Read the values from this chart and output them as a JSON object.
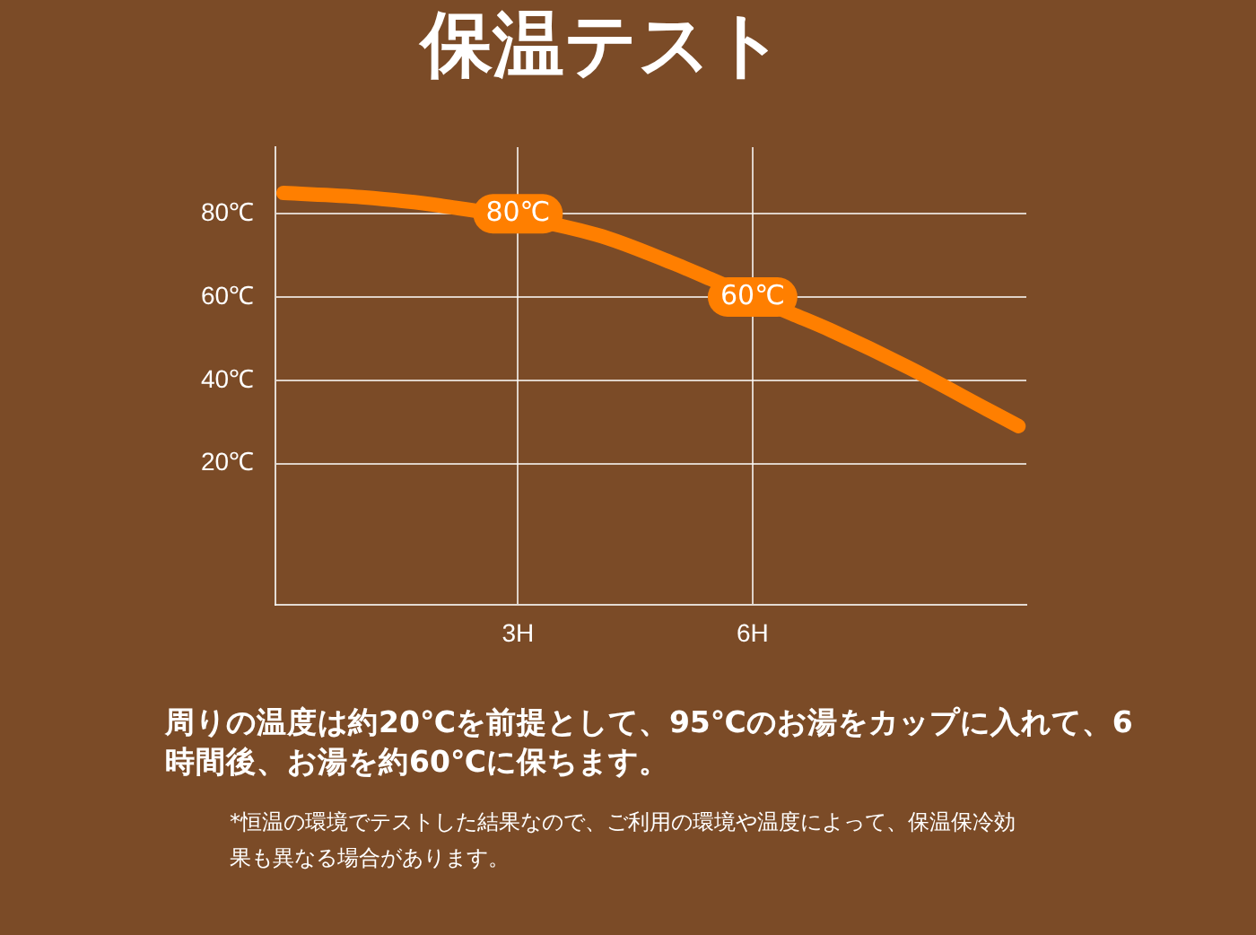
{
  "chart_data": {
    "type": "line",
    "title": "保温テスト",
    "x": [
      0,
      1,
      2,
      4,
      5,
      5.5,
      6.5,
      7,
      8,
      9,
      9.4
    ],
    "series": [
      {
        "color": "#ff7f00",
        "values": [
          85,
          84,
          82,
          75,
          68,
          64,
          56,
          52,
          43,
          33,
          29
        ]
      }
    ],
    "xlim": [
      -0.1,
      9.5
    ],
    "xticks": [
      {
        "value": 3,
        "label": "3H"
      },
      {
        "value": 6,
        "label": "6H"
      }
    ],
    "ylim": [
      -14,
      96
    ],
    "yticks": [
      {
        "value": 20,
        "label": "20℃"
      },
      {
        "value": 40,
        "label": "40℃"
      },
      {
        "value": 60,
        "label": "60℃"
      },
      {
        "value": 80,
        "label": "80℃"
      }
    ],
    "grid": true,
    "marker": "none",
    "line_style": "solid",
    "annotations": [
      {
        "text": "80℃",
        "x": 3,
        "y": 80
      },
      {
        "text": "60℃",
        "x": 6,
        "y": 60
      },
      "周りの温度は約20℃を前提として、95℃のお湯をカップに入れて、6時間後、お湯を約60℃に保ちます。",
      "*恒温の環境でテストした結果なので、ご利用の環境や温度によって、保温保冷効果も異なる場合があります。"
    ]
  }
}
